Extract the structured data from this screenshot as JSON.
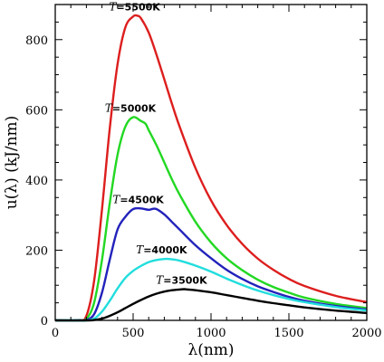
{
  "chart_data": {
    "type": "line",
    "xlabel": "λ(nm)",
    "ylabel": "u(λ) (kJ/nm)",
    "xlim": [
      0,
      2000
    ],
    "ylim": [
      0,
      900
    ],
    "xticks": [
      0,
      500,
      1000,
      1500,
      2000
    ],
    "yticks": [
      0,
      200,
      400,
      600,
      800
    ],
    "xtick_labels": [
      "0",
      "500",
      "1000",
      "1500",
      "2000"
    ],
    "ytick_labels": [
      "0",
      "200",
      "400",
      "600",
      "800"
    ],
    "grid": false,
    "legend": "inline labels above each curve peak",
    "series": [
      {
        "name": "T=5500K",
        "label_var": "T",
        "label_rest": "=5500K",
        "color": "#dd1e1e",
        "x": [
          0,
          150,
          200,
          250,
          300,
          350,
          400,
          450,
          500,
          527,
          550,
          600,
          650,
          700,
          750,
          800,
          900,
          1000,
          1100,
          1200,
          1300,
          1400,
          1500,
          1600,
          1800,
          2000
        ],
        "y": [
          0,
          0,
          13,
          114,
          316,
          547,
          730,
          835,
          866,
          868,
          861,
          820,
          757,
          687,
          616,
          550,
          434,
          342,
          272,
          218,
          176,
          144,
          118,
          98,
          70,
          52
        ]
      },
      {
        "name": "T=5000K",
        "label_var": "T",
        "label_rest": "=5000K",
        "color": "#22d822",
        "x": [
          0,
          150,
          200,
          250,
          300,
          350,
          400,
          450,
          500,
          550,
          580,
          600,
          650,
          700,
          750,
          800,
          900,
          1000,
          1100,
          1200,
          1300,
          1400,
          1500,
          1600,
          1800,
          2000
        ],
        "y": [
          0,
          0,
          4,
          51,
          172,
          334,
          472,
          552,
          579,
          568,
          560,
          542,
          499,
          450,
          401,
          357,
          281,
          222,
          177,
          143,
          116,
          95,
          79,
          65,
          47,
          35
        ]
      },
      {
        "name": "T=4500K",
        "label_var": "T",
        "label_rest": "=4500K",
        "color": "#2222bb",
        "x": [
          0,
          150,
          200,
          250,
          300,
          350,
          400,
          450,
          500,
          550,
          600,
          644,
          700,
          750,
          800,
          900,
          1000,
          1100,
          1200,
          1300,
          1400,
          1500,
          1600,
          1800,
          2000
        ],
        "y": [
          0,
          0,
          1,
          18,
          79,
          173,
          259,
          295,
          317,
          319,
          315,
          318,
          302,
          280,
          258,
          214,
          177,
          144,
          118,
          97,
          81,
          67,
          56,
          41,
          31
        ]
      },
      {
        "name": "T=4000K",
        "label_var": "T",
        "label_rest": "=4000K",
        "color": "#22dddd",
        "x": [
          0,
          150,
          200,
          250,
          300,
          350,
          400,
          450,
          500,
          550,
          600,
          650,
          700,
          725,
          750,
          800,
          900,
          1000,
          1100,
          1200,
          1300,
          1400,
          1500,
          1600,
          1800,
          2000
        ],
        "y": [
          0,
          0,
          0,
          5,
          25,
          56,
          91,
          121,
          141,
          155,
          166,
          172,
          175,
          175,
          174,
          170,
          156,
          139,
          119,
          101,
          85,
          72,
          61,
          52,
          38,
          28
        ]
      },
      {
        "name": "T=3500K",
        "label_var": "T",
        "label_rest": "=3500K",
        "color": "#000000",
        "x": [
          0,
          200,
          250,
          300,
          350,
          400,
          450,
          500,
          550,
          600,
          650,
          700,
          750,
          800,
          828,
          850,
          900,
          1000,
          1100,
          1200,
          1300,
          1400,
          1500,
          1600,
          1800,
          2000
        ],
        "y": [
          0,
          0,
          1,
          5,
          13,
          23,
          35,
          47,
          58,
          68,
          76,
          82,
          86,
          88,
          89,
          88,
          86,
          80,
          72,
          64,
          56,
          49,
          43,
          37,
          28,
          21
        ]
      }
    ]
  }
}
